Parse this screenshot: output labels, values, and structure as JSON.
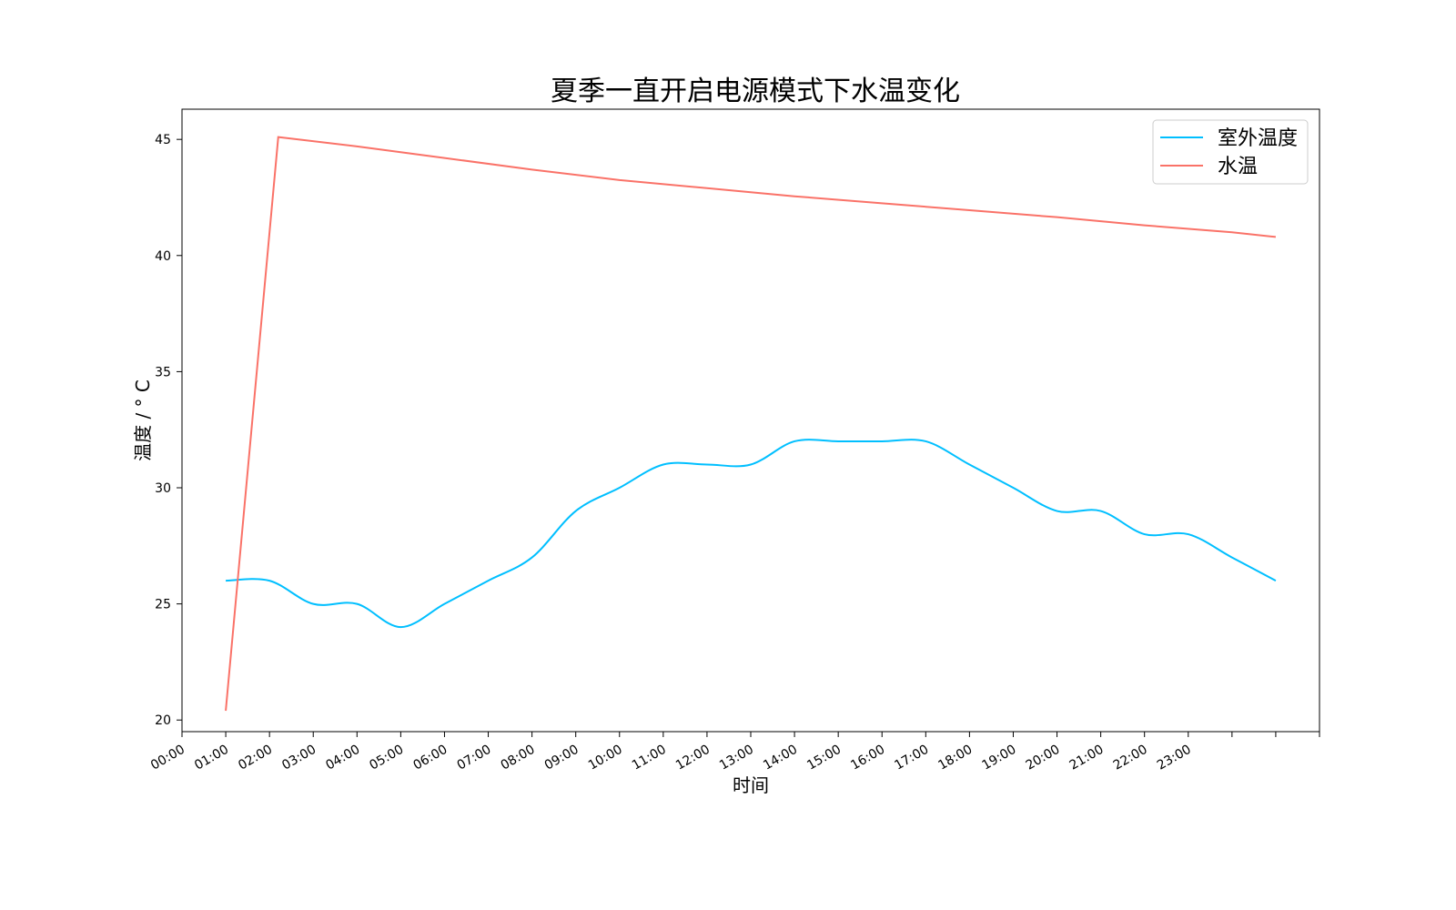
{
  "chart_data": {
    "type": "line",
    "title": "夏季一直开启电源模式下水温变化",
    "xlabel": "时间",
    "ylabel": "温度 / ° C",
    "ylim": [
      19.5,
      46.3
    ],
    "yticks": [
      20,
      25,
      30,
      35,
      40,
      45
    ],
    "ytick_labels": [
      "20",
      "25",
      "30",
      "35",
      "40",
      "45"
    ],
    "xlim": [
      -1,
      25
    ],
    "xtick_labels": [
      "00:00",
      "01:00",
      "02:00",
      "03:00",
      "04:00",
      "05:00",
      "06:00",
      "07:00",
      "08:00",
      "09:00",
      "10:00",
      "11:00",
      "12:00",
      "13:00",
      "14:00",
      "15:00",
      "16:00",
      "17:00",
      "18:00",
      "19:00",
      "20:00",
      "21:00",
      "22:00",
      "23:00"
    ],
    "grid": false,
    "legend_position": "top-right",
    "series": [
      {
        "name": "室外温度",
        "color": "#00bfff",
        "x": [
          0,
          1,
          2,
          3,
          4,
          5,
          6,
          7,
          8,
          9,
          10,
          11,
          12,
          13,
          14,
          15,
          16,
          17,
          18,
          19,
          20,
          21,
          22,
          23,
          24
        ],
        "y": [
          26,
          26,
          25,
          25,
          24,
          25,
          26,
          27,
          29,
          30,
          31,
          31,
          31,
          32,
          32,
          32,
          32,
          31,
          30,
          29,
          29,
          28,
          28,
          27,
          26
        ]
      },
      {
        "name": "水温",
        "color": "#fa7268",
        "x": [
          0,
          1.2,
          3,
          5,
          7,
          9,
          11,
          13,
          15,
          17,
          19,
          21,
          23,
          24
        ],
        "y": [
          20.4,
          45.1,
          44.7,
          44.2,
          43.7,
          43.25,
          42.9,
          42.55,
          42.25,
          41.95,
          41.65,
          41.3,
          41.0,
          40.8
        ]
      }
    ]
  }
}
